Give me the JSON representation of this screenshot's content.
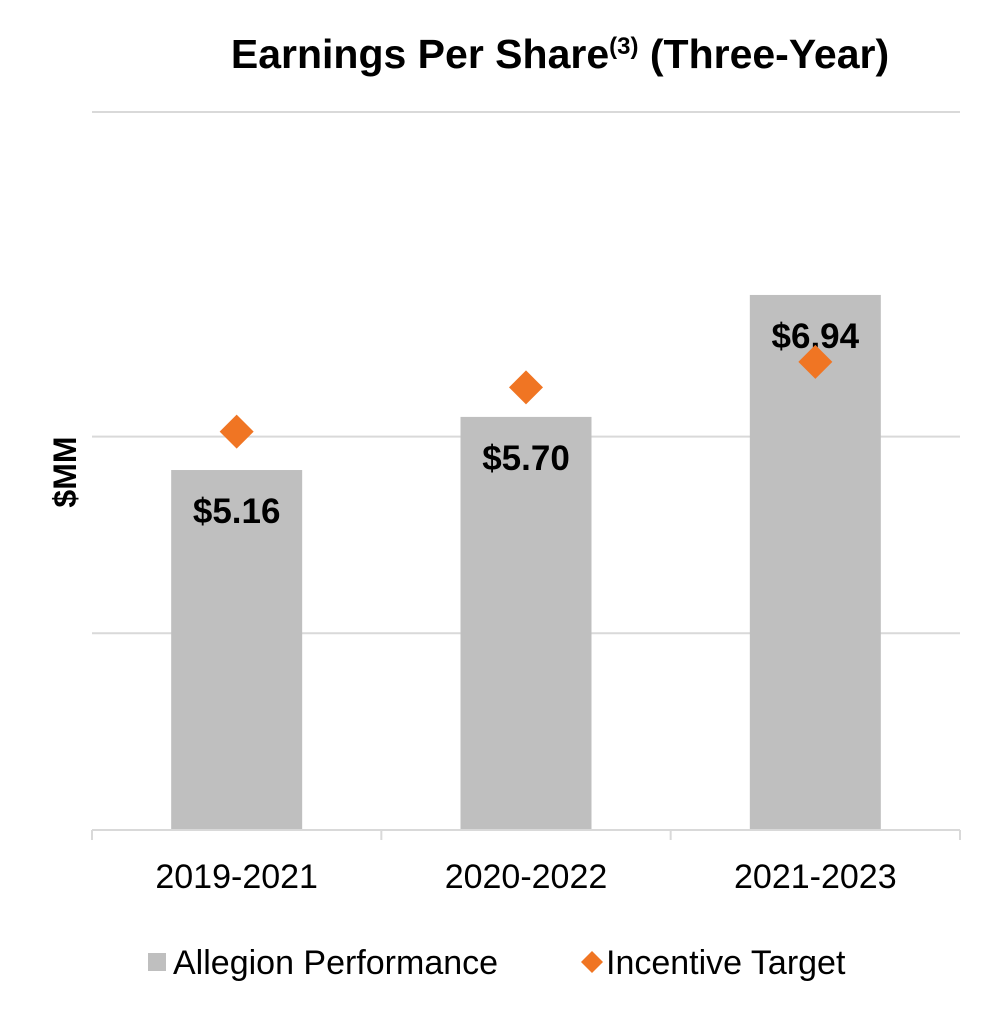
{
  "chart_data": {
    "type": "bar",
    "title": {
      "main": "Earnings Per Share",
      "superscript": "(3)",
      "suffix": " (Three-Year)"
    },
    "xlabel": "",
    "ylabel": "$MM",
    "categories": [
      "2019-2021",
      "2020-2022",
      "2021-2023"
    ],
    "series": [
      {
        "name": "Allegion Performance",
        "kind": "bar",
        "color": "#bfbfbf",
        "values": [
          5.16,
          5.7,
          6.94
        ],
        "labels": [
          "$5.16",
          "$5.70",
          "$6.94"
        ]
      },
      {
        "name": "Incentive Target",
        "kind": "marker",
        "marker": "diamond",
        "color": "#f07523",
        "values": [
          5.55,
          6.0,
          6.26
        ]
      }
    ],
    "ylim": [
      1.5,
      8.8
    ],
    "gridlines": [
      3.5,
      5.5,
      8.8
    ],
    "gridline_color": "#d9d9d9",
    "axis_color": "#d9d9d9",
    "legend_position": "bottom"
  }
}
